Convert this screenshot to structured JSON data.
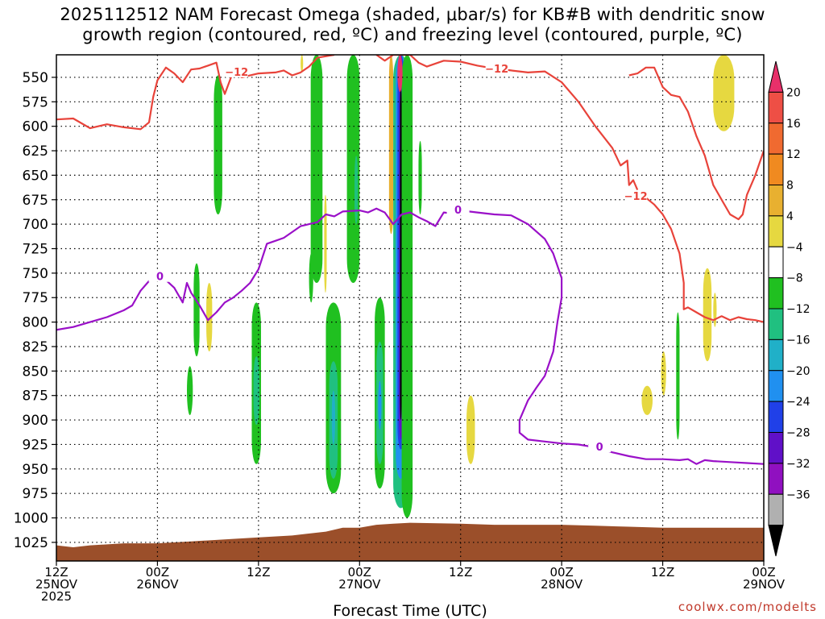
{
  "title": {
    "line1": "2025112512 NAM Forecast Omega (shaded, μbar/s) for KB#B with dendritic snow",
    "line2": "growth region (contoured, red, ºC) and freezing level (contoured, purple, ºC)"
  },
  "credit": "coolwx.com/modelts",
  "chart_data": {
    "type": "heatmap",
    "xlabel": "Forecast Time (UTC)",
    "x_range_hours": [
      0,
      84
    ],
    "x_ticks": [
      {
        "h": 0,
        "l1": "12Z",
        "l2": "25NOV",
        "l3": "2025"
      },
      {
        "h": 12,
        "l1": "00Z",
        "l2": "26NOV",
        "l3": ""
      },
      {
        "h": 24,
        "l1": "12Z",
        "l2": "",
        "l3": ""
      },
      {
        "h": 36,
        "l1": "00Z",
        "l2": "27NOV",
        "l3": ""
      },
      {
        "h": 48,
        "l1": "12Z",
        "l2": "",
        "l3": ""
      },
      {
        "h": 60,
        "l1": "00Z",
        "l2": "28NOV",
        "l3": ""
      },
      {
        "h": 72,
        "l1": "12Z",
        "l2": "",
        "l3": ""
      },
      {
        "h": 84,
        "l1": "00Z",
        "l2": "29NOV",
        "l3": ""
      }
    ],
    "y_ticks": [
      550,
      575,
      600,
      625,
      650,
      675,
      700,
      725,
      750,
      775,
      800,
      825,
      850,
      875,
      900,
      925,
      950,
      975,
      1000,
      1025
    ],
    "y_range_hpa": [
      527,
      1044
    ],
    "colorbar": {
      "labels": [
        "20",
        "16",
        "12",
        "8",
        "4",
        "−4",
        "−8",
        "−12",
        "−16",
        "−20",
        "−24",
        "−28",
        "−32",
        "−36"
      ],
      "colors": [
        "#e8306a",
        "#ee4f45",
        "#f06a30",
        "#f08a20",
        "#e8b030",
        "#e6d840",
        "#ffffff",
        "#20c020",
        "#20c080",
        "#20b0c8",
        "#2090f0",
        "#2040e8",
        "#6010c8",
        "#9010c0",
        "#b0b0b0",
        "#000000"
      ]
    },
    "omega_cells": [
      {
        "h": [
          18.7,
          19.7
        ],
        "p": [
          548,
          690
        ],
        "c": "#20c020"
      },
      {
        "h": [
          16.3,
          17.0
        ],
        "p": [
          740,
          835
        ],
        "c": "#20c020"
      },
      {
        "h": [
          17.8,
          18.5
        ],
        "p": [
          760,
          830
        ],
        "c": "#e6d840"
      },
      {
        "h": [
          15.5,
          16.2
        ],
        "p": [
          845,
          895
        ],
        "c": "#20c020"
      },
      {
        "h": [
          23.2,
          24.3
        ],
        "p": [
          780,
          945
        ],
        "c": "#20c020"
      },
      {
        "h": [
          23.4,
          24.1
        ],
        "p": [
          835,
          905
        ],
        "c": "#20c080"
      },
      {
        "h": [
          30.2,
          31.6
        ],
        "p": [
          527,
          760
        ],
        "c": "#20c020"
      },
      {
        "h": [
          30.0,
          30.5
        ],
        "p": [
          730,
          780
        ],
        "c": "#20c020"
      },
      {
        "h": [
          32.0,
          33.8
        ],
        "p": [
          780,
          975
        ],
        "c": "#20c020"
      },
      {
        "h": [
          32.4,
          33.4
        ],
        "p": [
          840,
          960
        ],
        "c": "#20c080"
      },
      {
        "h": [
          32.7,
          33.1
        ],
        "p": [
          870,
          925
        ],
        "c": "#20b0c8"
      },
      {
        "h": [
          31.8,
          32.1
        ],
        "p": [
          670,
          770
        ],
        "c": "#e6d840"
      },
      {
        "h": [
          34.5,
          36.0
        ],
        "p": [
          527,
          760
        ],
        "c": "#20c020"
      },
      {
        "h": [
          35.4,
          35.8
        ],
        "p": [
          630,
          700
        ],
        "c": "#20c080"
      },
      {
        "h": [
          37.8,
          39.0
        ],
        "p": [
          775,
          970
        ],
        "c": "#20c020"
      },
      {
        "h": [
          38.0,
          38.8
        ],
        "p": [
          820,
          945
        ],
        "c": "#20c080"
      },
      {
        "h": [
          38.2,
          38.6
        ],
        "p": [
          860,
          910
        ],
        "c": "#2090f0"
      },
      {
        "h": [
          39.5,
          40.0
        ],
        "p": [
          527,
          710
        ],
        "c": "#e8b030"
      },
      {
        "h": [
          40.0,
          41.8
        ],
        "p": [
          527,
          990
        ],
        "c": "#20c080"
      },
      {
        "h": [
          40.3,
          41.5
        ],
        "p": [
          527,
          960
        ],
        "c": "#2090f0"
      },
      {
        "h": [
          40.5,
          41.3
        ],
        "p": [
          527,
          930
        ],
        "c": "#2040e8"
      },
      {
        "h": [
          40.7,
          41.1
        ],
        "p": [
          527,
          920
        ],
        "c": "#6010c8"
      },
      {
        "h": [
          40.8,
          41.0
        ],
        "p": [
          560,
          900
        ],
        "c": "#000000"
      },
      {
        "h": [
          41.0,
          42.3
        ],
        "p": [
          527,
          1000
        ],
        "c": "#20c020"
      },
      {
        "h": [
          43.0,
          43.4
        ],
        "p": [
          615,
          690
        ],
        "c": "#20c020"
      },
      {
        "h": [
          29.0,
          29.3
        ],
        "p": [
          527,
          545
        ],
        "c": "#e6d840"
      },
      {
        "h": [
          40.5,
          41.1
        ],
        "p": [
          527,
          565
        ],
        "c": "#e8306a"
      },
      {
        "h": [
          48.7,
          49.7
        ],
        "p": [
          875,
          945
        ],
        "c": "#e6d840"
      },
      {
        "h": [
          69.5,
          70.8
        ],
        "p": [
          865,
          895
        ],
        "c": "#e6d840"
      },
      {
        "h": [
          71.8,
          72.4
        ],
        "p": [
          830,
          875
        ],
        "c": "#e6d840"
      },
      {
        "h": [
          73.6,
          74.0
        ],
        "p": [
          790,
          920
        ],
        "c": "#20c020"
      },
      {
        "h": [
          78.0,
          80.5
        ],
        "p": [
          527,
          605
        ],
        "c": "#e6d840"
      },
      {
        "h": [
          76.8,
          77.8
        ],
        "p": [
          745,
          840
        ],
        "c": "#e6d840"
      },
      {
        "h": [
          78.0,
          78.4
        ],
        "p": [
          770,
          805
        ],
        "c": "#e6d840"
      }
    ],
    "dgz_contour_label": "−12",
    "dgz_upper": [
      [
        0,
        593
      ],
      [
        2,
        592
      ],
      [
        4,
        602
      ],
      [
        6,
        598
      ],
      [
        8,
        601
      ],
      [
        10,
        603
      ],
      [
        11,
        596
      ],
      [
        11.5,
        570
      ],
      [
        12,
        553
      ],
      [
        13,
        540
      ],
      [
        14,
        546
      ],
      [
        15,
        555
      ],
      [
        16,
        542
      ],
      [
        17,
        541
      ],
      [
        18,
        538
      ],
      [
        19,
        535
      ],
      [
        19.5,
        555
      ],
      [
        20,
        567
      ],
      [
        21,
        544
      ],
      [
        22,
        550
      ],
      [
        24,
        546
      ],
      [
        26,
        545
      ],
      [
        27,
        543
      ],
      [
        28,
        548
      ],
      [
        29,
        545
      ],
      [
        30,
        539
      ],
      [
        31,
        530
      ],
      [
        33,
        527
      ]
    ],
    "dgz_upper2": [
      [
        38,
        527
      ],
      [
        39,
        533
      ],
      [
        40,
        527
      ],
      [
        42,
        527
      ],
      [
        43,
        535
      ],
      [
        44,
        539
      ],
      [
        46,
        533
      ],
      [
        48,
        534
      ],
      [
        50,
        538
      ],
      [
        52,
        541
      ],
      [
        54,
        543
      ],
      [
        56,
        545
      ],
      [
        58,
        544
      ],
      [
        60,
        555
      ],
      [
        62,
        575
      ],
      [
        64,
        600
      ],
      [
        66,
        622
      ],
      [
        67,
        640
      ],
      [
        67.8,
        635
      ],
      [
        68,
        660
      ],
      [
        68.5,
        655
      ],
      [
        69,
        665
      ]
    ],
    "dgz_lower": [
      [
        69,
        668
      ],
      [
        70,
        673
      ],
      [
        71,
        680
      ],
      [
        72,
        690
      ],
      [
        73,
        705
      ],
      [
        74,
        730
      ],
      [
        74.5,
        760
      ],
      [
        74.5,
        787
      ],
      [
        75,
        785
      ],
      [
        76,
        790
      ],
      [
        77,
        795
      ],
      [
        78,
        798
      ],
      [
        79,
        794
      ],
      [
        80,
        798
      ],
      [
        81,
        795
      ],
      [
        82,
        797
      ],
      [
        83,
        798
      ],
      [
        84,
        800
      ]
    ],
    "dgz_upper3": [
      [
        68,
        548
      ],
      [
        69,
        546
      ],
      [
        70,
        540
      ],
      [
        71,
        540
      ],
      [
        72,
        560
      ],
      [
        73,
        568
      ],
      [
        74,
        570
      ],
      [
        75,
        585
      ],
      [
        76,
        610
      ],
      [
        77,
        630
      ],
      [
        78,
        660
      ],
      [
        79,
        675
      ],
      [
        80,
        690
      ],
      [
        81,
        695
      ],
      [
        81.5,
        690
      ],
      [
        82,
        670
      ],
      [
        83,
        650
      ],
      [
        84,
        625
      ]
    ],
    "frz_contour_label": "0",
    "frz_line": [
      [
        0,
        808
      ],
      [
        2,
        805
      ],
      [
        4,
        800
      ],
      [
        6,
        795
      ],
      [
        8,
        788
      ],
      [
        9,
        783
      ],
      [
        10,
        768
      ],
      [
        11,
        758
      ],
      [
        12,
        754
      ],
      [
        13,
        757
      ],
      [
        14,
        765
      ],
      [
        15,
        780
      ],
      [
        15.5,
        760
      ],
      [
        16,
        770
      ],
      [
        17,
        783
      ],
      [
        18,
        798
      ],
      [
        19,
        790
      ],
      [
        20,
        780
      ],
      [
        21,
        775
      ],
      [
        22,
        768
      ],
      [
        23,
        760
      ],
      [
        24,
        746
      ],
      [
        25,
        720
      ],
      [
        26,
        717
      ],
      [
        27,
        714
      ],
      [
        28,
        708
      ],
      [
        29,
        702
      ],
      [
        30,
        700
      ],
      [
        31,
        698
      ],
      [
        32,
        690
      ],
      [
        33,
        692
      ],
      [
        34,
        687
      ],
      [
        36,
        686
      ],
      [
        37,
        688
      ],
      [
        38,
        684
      ],
      [
        39,
        688
      ],
      [
        40,
        700
      ],
      [
        41,
        690
      ],
      [
        42,
        688
      ],
      [
        43,
        693
      ],
      [
        44,
        697
      ],
      [
        45,
        702
      ],
      [
        46,
        688
      ],
      [
        47,
        689
      ],
      [
        48,
        686
      ],
      [
        50,
        688
      ],
      [
        52,
        690
      ],
      [
        54,
        691
      ],
      [
        56,
        700
      ],
      [
        58,
        715
      ],
      [
        59,
        730
      ],
      [
        60,
        755
      ],
      [
        60,
        775
      ],
      [
        59.5,
        800
      ],
      [
        59,
        830
      ],
      [
        58,
        855
      ],
      [
        57,
        867
      ],
      [
        56,
        880
      ],
      [
        55,
        900
      ],
      [
        55,
        913
      ],
      [
        56,
        920
      ],
      [
        58,
        922
      ],
      [
        60,
        924
      ],
      [
        62,
        925
      ],
      [
        64,
        928
      ],
      [
        66,
        933
      ],
      [
        68,
        937
      ],
      [
        70,
        940
      ],
      [
        72,
        940
      ],
      [
        74,
        941
      ],
      [
        75,
        940
      ],
      [
        76,
        945
      ],
      [
        77,
        941
      ],
      [
        78,
        942
      ],
      [
        80,
        943
      ],
      [
        82,
        944
      ],
      [
        84,
        945
      ]
    ],
    "terrain_top": [
      [
        0,
        1028
      ],
      [
        2,
        1030
      ],
      [
        4,
        1028
      ],
      [
        8,
        1026
      ],
      [
        12,
        1026
      ],
      [
        16,
        1024
      ],
      [
        20,
        1022
      ],
      [
        24,
        1020
      ],
      [
        28,
        1018
      ],
      [
        32,
        1014
      ],
      [
        34,
        1010
      ],
      [
        36,
        1010
      ],
      [
        38,
        1007
      ],
      [
        40,
        1006
      ],
      [
        42,
        1005
      ],
      [
        48,
        1006
      ],
      [
        52,
        1007
      ],
      [
        56,
        1007
      ],
      [
        60,
        1007
      ],
      [
        64,
        1008
      ],
      [
        68,
        1009
      ],
      [
        72,
        1010
      ],
      [
        76,
        1010
      ],
      [
        80,
        1010
      ],
      [
        84,
        1010
      ]
    ]
  }
}
